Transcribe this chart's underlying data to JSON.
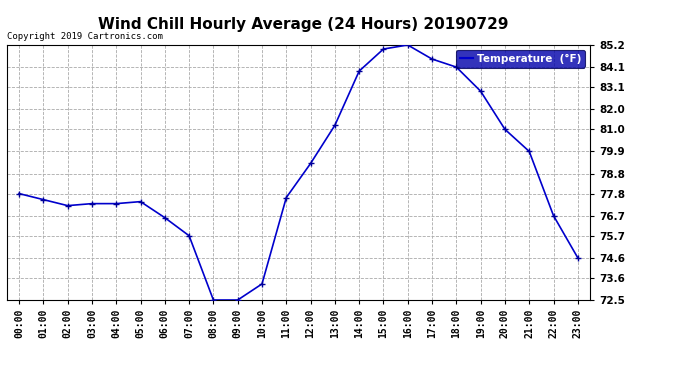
{
  "title": "Wind Chill Hourly Average (24 Hours) 20190729",
  "copyright": "Copyright 2019 Cartronics.com",
  "legend_label": "Temperature  (°F)",
  "x_labels": [
    "00:00",
    "01:00",
    "02:00",
    "03:00",
    "04:00",
    "05:00",
    "06:00",
    "07:00",
    "08:00",
    "09:00",
    "10:00",
    "11:00",
    "12:00",
    "13:00",
    "14:00",
    "15:00",
    "16:00",
    "17:00",
    "18:00",
    "19:00",
    "20:00",
    "21:00",
    "22:00",
    "23:00"
  ],
  "y_values": [
    77.8,
    77.5,
    77.2,
    77.3,
    77.3,
    77.4,
    76.6,
    75.7,
    72.5,
    72.5,
    73.3,
    77.6,
    79.3,
    81.2,
    83.9,
    85.0,
    85.2,
    84.5,
    84.1,
    82.9,
    81.0,
    79.9,
    76.7,
    74.6
  ],
  "ylim": [
    72.5,
    85.2
  ],
  "yticks": [
    72.5,
    73.6,
    74.6,
    75.7,
    76.7,
    77.8,
    78.8,
    79.9,
    81.0,
    82.0,
    83.1,
    84.1,
    85.2
  ],
  "line_color": "#0000cc",
  "marker": "+",
  "marker_color": "#000099",
  "bg_color": "#ffffff",
  "grid_color": "#aaaaaa",
  "title_fontsize": 11,
  "copyright_fontsize": 6.5,
  "legend_bg": "#0000aa",
  "legend_fg": "#ffffff"
}
